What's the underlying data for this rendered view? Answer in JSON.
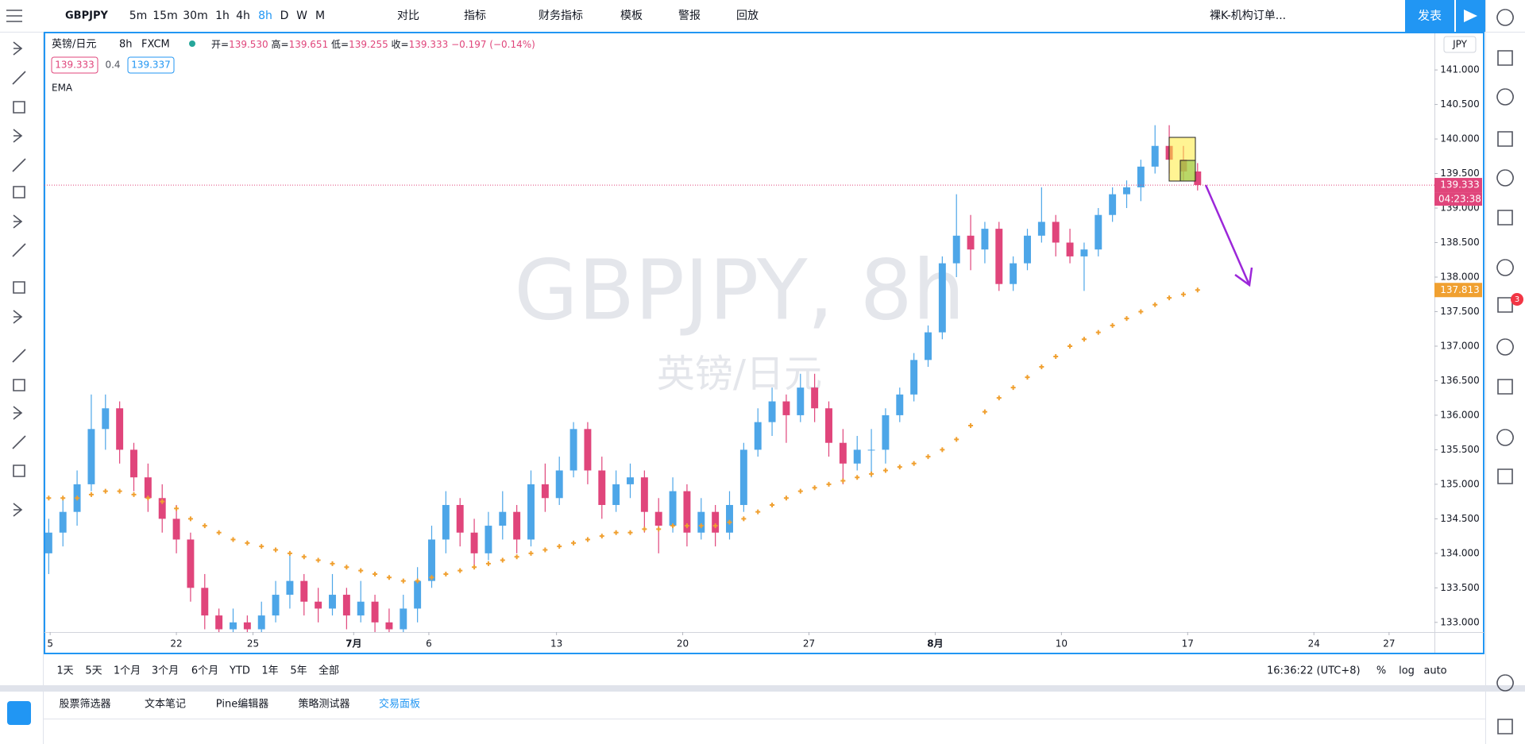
{
  "top_toolbar": {
    "symbol": "GBPJPY",
    "intervals": [
      "5m",
      "15m",
      "30m",
      "1h",
      "4h",
      "8h",
      "D",
      "W",
      "M"
    ],
    "active_interval": 5,
    "compare": "对比",
    "indicators": "指标",
    "financials": "财务指标",
    "templates": "模板",
    "alerts": "警报",
    "replay": "回放",
    "layout": "裸K-机构订单...",
    "publish": "发表"
  },
  "legend": {
    "symbol": "英镑/日元",
    "interval": "8h",
    "exchange": "FXCM",
    "fields": [
      {
        "label": "开=",
        "value": "139.530"
      },
      {
        "label": "高=",
        "value": "139.651"
      },
      {
        "label": "低=",
        "value": "139.255"
      },
      {
        "label": "收=",
        "value": "139.333"
      }
    ],
    "change": "−0.197 (−0.14%)",
    "bid": "139.333",
    "spread": "0.4",
    "ask": "139.337",
    "indicator": "EMA"
  },
  "watermark": {
    "title": "GBPJPY, 8h",
    "subtitle": "英镑/日元"
  },
  "price_axis": {
    "currency": "JPY",
    "last_price": "139.333",
    "countdown": "04:23:38",
    "ema_price": "137.813"
  },
  "chart_data": {
    "type": "candlestick",
    "xlim": [
      -0.3,
      97.7
    ],
    "ylim": [
      132.86,
      141.53
    ],
    "xticks": [
      {
        "value": 0.1,
        "label": "5"
      },
      {
        "value": 9.0,
        "label": "22"
      },
      {
        "value": 14.4,
        "label": "25"
      },
      {
        "value": 21.5,
        "label": "7月"
      },
      {
        "value": 26.8,
        "label": "6"
      },
      {
        "value": 35.8,
        "label": "13"
      },
      {
        "value": 44.7,
        "label": "20"
      },
      {
        "value": 53.6,
        "label": "27"
      },
      {
        "value": 62.5,
        "label": "8月"
      },
      {
        "value": 71.4,
        "label": "10"
      },
      {
        "value": 80.3,
        "label": "17"
      },
      {
        "value": 89.2,
        "label": "24"
      },
      {
        "value": 94.5,
        "label": "27"
      }
    ],
    "yticks": [
      {
        "value": 133,
        "label": "133.000"
      },
      {
        "value": 133.5,
        "label": "133.500"
      },
      {
        "value": 134,
        "label": "134.000"
      },
      {
        "value": 134.5,
        "label": "134.500"
      },
      {
        "value": 135,
        "label": "135.000"
      },
      {
        "value": 135.5,
        "label": "135.500"
      },
      {
        "value": 136,
        "label": "136.000"
      },
      {
        "value": 136.5,
        "label": "136.500"
      },
      {
        "value": 137,
        "label": "137.000"
      },
      {
        "value": 137.5,
        "label": "137.500"
      },
      {
        "value": 138,
        "label": "138.000"
      },
      {
        "value": 138.5,
        "label": "138.500"
      },
      {
        "value": 139,
        "label": "139.000"
      },
      {
        "value": 139.5,
        "label": "139.500"
      },
      {
        "value": 140,
        "label": "140.000"
      },
      {
        "value": 140.5,
        "label": "140.500"
      },
      {
        "value": 141,
        "label": "141.000"
      }
    ],
    "grid": false,
    "up_color": "#4da6e8",
    "down_color": "#e0457b",
    "series": [
      {
        "name": "GBPJPY",
        "ohlc": [
          [
            134.0,
            134.5,
            133.7,
            134.3
          ],
          [
            134.3,
            134.8,
            134.1,
            134.6
          ],
          [
            134.6,
            135.2,
            134.4,
            135.0
          ],
          [
            135.0,
            136.3,
            134.9,
            135.8
          ],
          [
            135.8,
            136.3,
            135.5,
            136.1
          ],
          [
            136.1,
            136.2,
            135.3,
            135.5
          ],
          [
            135.5,
            135.6,
            134.9,
            135.1
          ],
          [
            135.1,
            135.3,
            134.6,
            134.8
          ],
          [
            134.8,
            135.0,
            134.3,
            134.5
          ],
          [
            134.5,
            134.7,
            134.0,
            134.2
          ],
          [
            134.2,
            134.3,
            133.3,
            133.5
          ],
          [
            133.5,
            133.7,
            132.9,
            133.1
          ],
          [
            133.1,
            133.2,
            132.8,
            132.9
          ],
          [
            132.9,
            133.2,
            132.8,
            133.0
          ],
          [
            133.0,
            133.1,
            132.8,
            132.9
          ],
          [
            132.9,
            133.3,
            132.8,
            133.1
          ],
          [
            133.1,
            133.6,
            133.0,
            133.4
          ],
          [
            133.4,
            134.0,
            133.2,
            133.6
          ],
          [
            133.6,
            133.7,
            133.1,
            133.3
          ],
          [
            133.3,
            133.5,
            133.0,
            133.2
          ],
          [
            133.2,
            133.7,
            133.1,
            133.4
          ],
          [
            133.4,
            133.5,
            132.9,
            133.1
          ],
          [
            133.1,
            133.6,
            133.0,
            133.3
          ],
          [
            133.3,
            133.4,
            132.8,
            133.0
          ],
          [
            133.0,
            133.2,
            132.7,
            132.9
          ],
          [
            132.9,
            133.4,
            132.8,
            133.2
          ],
          [
            133.2,
            133.8,
            133.0,
            133.6
          ],
          [
            133.6,
            134.4,
            133.5,
            134.2
          ],
          [
            134.2,
            134.9,
            134.0,
            134.7
          ],
          [
            134.7,
            134.8,
            134.1,
            134.3
          ],
          [
            134.3,
            134.5,
            133.8,
            134.0
          ],
          [
            134.0,
            134.6,
            133.9,
            134.4
          ],
          [
            134.4,
            134.9,
            134.2,
            134.6
          ],
          [
            134.6,
            134.7,
            134.0,
            134.2
          ],
          [
            134.2,
            135.2,
            134.1,
            135.0
          ],
          [
            135.0,
            135.3,
            134.6,
            134.8
          ],
          [
            134.8,
            135.4,
            134.7,
            135.2
          ],
          [
            135.2,
            135.9,
            135.1,
            135.8
          ],
          [
            135.8,
            135.9,
            135.0,
            135.2
          ],
          [
            135.2,
            135.4,
            134.5,
            134.7
          ],
          [
            134.7,
            135.2,
            134.6,
            135.0
          ],
          [
            135.0,
            135.3,
            134.8,
            135.1
          ],
          [
            135.1,
            135.2,
            134.3,
            134.6
          ],
          [
            134.6,
            134.8,
            134.0,
            134.4
          ],
          [
            134.4,
            135.1,
            134.3,
            134.9
          ],
          [
            134.9,
            135.0,
            134.1,
            134.3
          ],
          [
            134.3,
            134.8,
            134.2,
            134.6
          ],
          [
            134.6,
            134.7,
            134.1,
            134.3
          ],
          [
            134.3,
            134.9,
            134.2,
            134.7
          ],
          [
            134.7,
            135.6,
            134.6,
            135.5
          ],
          [
            135.5,
            136.1,
            135.4,
            135.9
          ],
          [
            135.9,
            136.4,
            135.7,
            136.2
          ],
          [
            136.2,
            136.3,
            135.6,
            136.0
          ],
          [
            136.0,
            136.6,
            135.9,
            136.4
          ],
          [
            136.4,
            136.6,
            135.9,
            136.1
          ],
          [
            136.1,
            136.2,
            135.4,
            135.6
          ],
          [
            135.6,
            135.8,
            135.0,
            135.3
          ],
          [
            135.3,
            135.7,
            135.2,
            135.5
          ],
          [
            135.5,
            135.8,
            135.1,
            135.5
          ],
          [
            135.5,
            136.1,
            135.3,
            136.0
          ],
          [
            136.0,
            136.4,
            135.9,
            136.3
          ],
          [
            136.3,
            136.9,
            136.2,
            136.8
          ],
          [
            136.8,
            137.3,
            136.7,
            137.2
          ],
          [
            137.2,
            138.3,
            137.1,
            138.2
          ],
          [
            138.2,
            139.2,
            138.0,
            138.6
          ],
          [
            138.6,
            138.9,
            138.1,
            138.4
          ],
          [
            138.4,
            138.8,
            138.2,
            138.7
          ],
          [
            138.7,
            138.8,
            137.8,
            137.9
          ],
          [
            137.9,
            138.3,
            137.8,
            138.2
          ],
          [
            138.2,
            138.7,
            138.1,
            138.6
          ],
          [
            138.6,
            139.3,
            138.5,
            138.8
          ],
          [
            138.8,
            138.9,
            138.3,
            138.5
          ],
          [
            138.5,
            138.7,
            138.2,
            138.3
          ],
          [
            138.3,
            138.5,
            137.8,
            138.4
          ],
          [
            138.4,
            139.0,
            138.3,
            138.9
          ],
          [
            138.9,
            139.3,
            138.8,
            139.2
          ],
          [
            139.2,
            139.4,
            139.0,
            139.3
          ],
          [
            139.3,
            139.7,
            139.1,
            139.6
          ],
          [
            139.6,
            140.2,
            139.5,
            139.9
          ],
          [
            139.9,
            140.2,
            139.5,
            139.7
          ],
          [
            139.7,
            139.9,
            139.4,
            139.53
          ],
          [
            139.53,
            139.651,
            139.255,
            139.333
          ]
        ]
      },
      {
        "name": "EMA",
        "color": "#f0a030",
        "values": [
          134.8,
          134.8,
          134.8,
          134.85,
          134.9,
          134.9,
          134.85,
          134.8,
          134.75,
          134.65,
          134.5,
          134.4,
          134.3,
          134.2,
          134.15,
          134.1,
          134.05,
          134.0,
          133.95,
          133.9,
          133.85,
          133.8,
          133.75,
          133.7,
          133.65,
          133.6,
          133.6,
          133.65,
          133.7,
          133.75,
          133.8,
          133.85,
          133.9,
          133.95,
          134.0,
          134.05,
          134.1,
          134.15,
          134.2,
          134.25,
          134.3,
          134.3,
          134.35,
          134.35,
          134.4,
          134.4,
          134.4,
          134.4,
          134.45,
          134.5,
          134.6,
          134.7,
          134.8,
          134.9,
          134.95,
          135.0,
          135.05,
          135.1,
          135.15,
          135.2,
          135.25,
          135.3,
          135.4,
          135.5,
          135.65,
          135.85,
          136.05,
          136.25,
          136.4,
          136.55,
          136.7,
          136.85,
          137.0,
          137.1,
          137.2,
          137.3,
          137.4,
          137.5,
          137.6,
          137.7,
          137.75,
          137.813
        ]
      }
    ]
  },
  "bottom_bar": {
    "ranges": [
      "1天",
      "5天",
      "1个月",
      "3个月",
      "6个月",
      "YTD",
      "1年",
      "5年",
      "全部"
    ],
    "clock": "16:36:22 (UTC+8)",
    "percent": "%",
    "log": "log",
    "auto": "auto"
  },
  "panel_tabs": [
    "股票筛选器",
    "文本笔记",
    "Pine编辑器",
    "策略测试器",
    "交易面板"
  ],
  "active_tab": 4,
  "notifications": "3"
}
